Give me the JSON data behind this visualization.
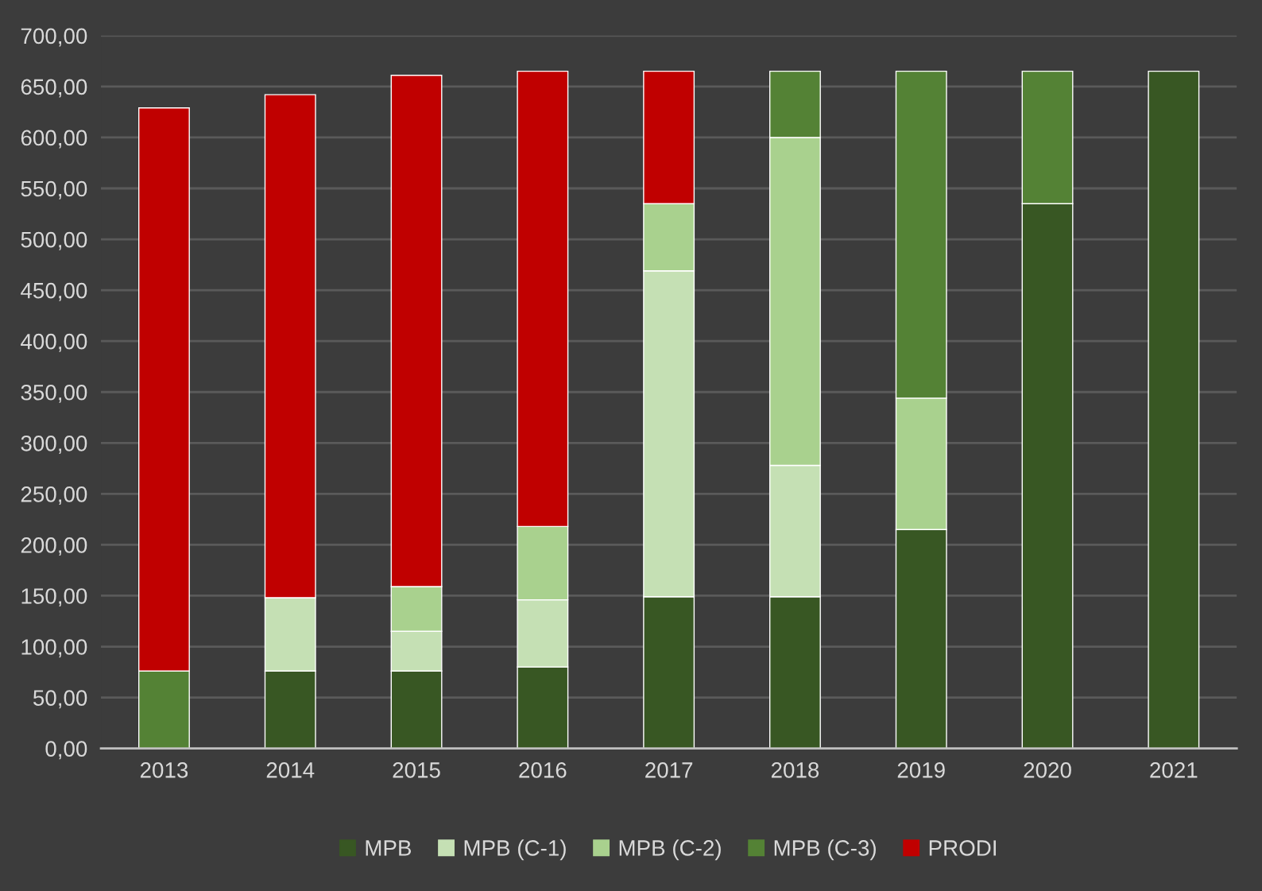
{
  "chart_data": {
    "type": "bar",
    "stacked": true,
    "categories": [
      "2013",
      "2014",
      "2015",
      "2016",
      "2017",
      "2018",
      "2019",
      "2020",
      "2021"
    ],
    "series": [
      {
        "name": "MPB",
        "color": "#385723",
        "values": [
          null,
          76,
          76,
          80,
          149,
          149,
          215,
          535,
          665
        ]
      },
      {
        "name": "MPB (C-1)",
        "color": "#c5e0b4",
        "values": [
          null,
          72,
          39,
          66,
          320,
          129,
          null,
          null,
          null
        ]
      },
      {
        "name": "MPB (C-2)",
        "color": "#a9d18e",
        "values": [
          null,
          null,
          44,
          72,
          66,
          322,
          129,
          null,
          null
        ]
      },
      {
        "name": "MPB (C-3)",
        "color": "#548235",
        "values": [
          76,
          null,
          null,
          null,
          null,
          65,
          321,
          130,
          null
        ]
      },
      {
        "name": "PRODI",
        "color": "#c00000",
        "values": [
          553,
          494,
          502,
          447,
          130,
          null,
          null,
          null,
          null
        ]
      }
    ],
    "ylim": [
      0,
      700
    ],
    "yticks": [
      {
        "value": 0,
        "label": "0,00"
      },
      {
        "value": 50,
        "label": "50,00"
      },
      {
        "value": 100,
        "label": "100,00"
      },
      {
        "value": 150,
        "label": "150,00"
      },
      {
        "value": 200,
        "label": "200,00"
      },
      {
        "value": 250,
        "label": "250,00"
      },
      {
        "value": 300,
        "label": "300,00"
      },
      {
        "value": 350,
        "label": "350,00"
      },
      {
        "value": 400,
        "label": "400,00"
      },
      {
        "value": 450,
        "label": "450,00"
      },
      {
        "value": 500,
        "label": "500,00"
      },
      {
        "value": 550,
        "label": "550,00"
      },
      {
        "value": 600,
        "label": "600,00"
      },
      {
        "value": 650,
        "label": "650,00"
      },
      {
        "value": 700,
        "label": "700,00"
      }
    ],
    "grid": "y",
    "legend": "bottom"
  }
}
